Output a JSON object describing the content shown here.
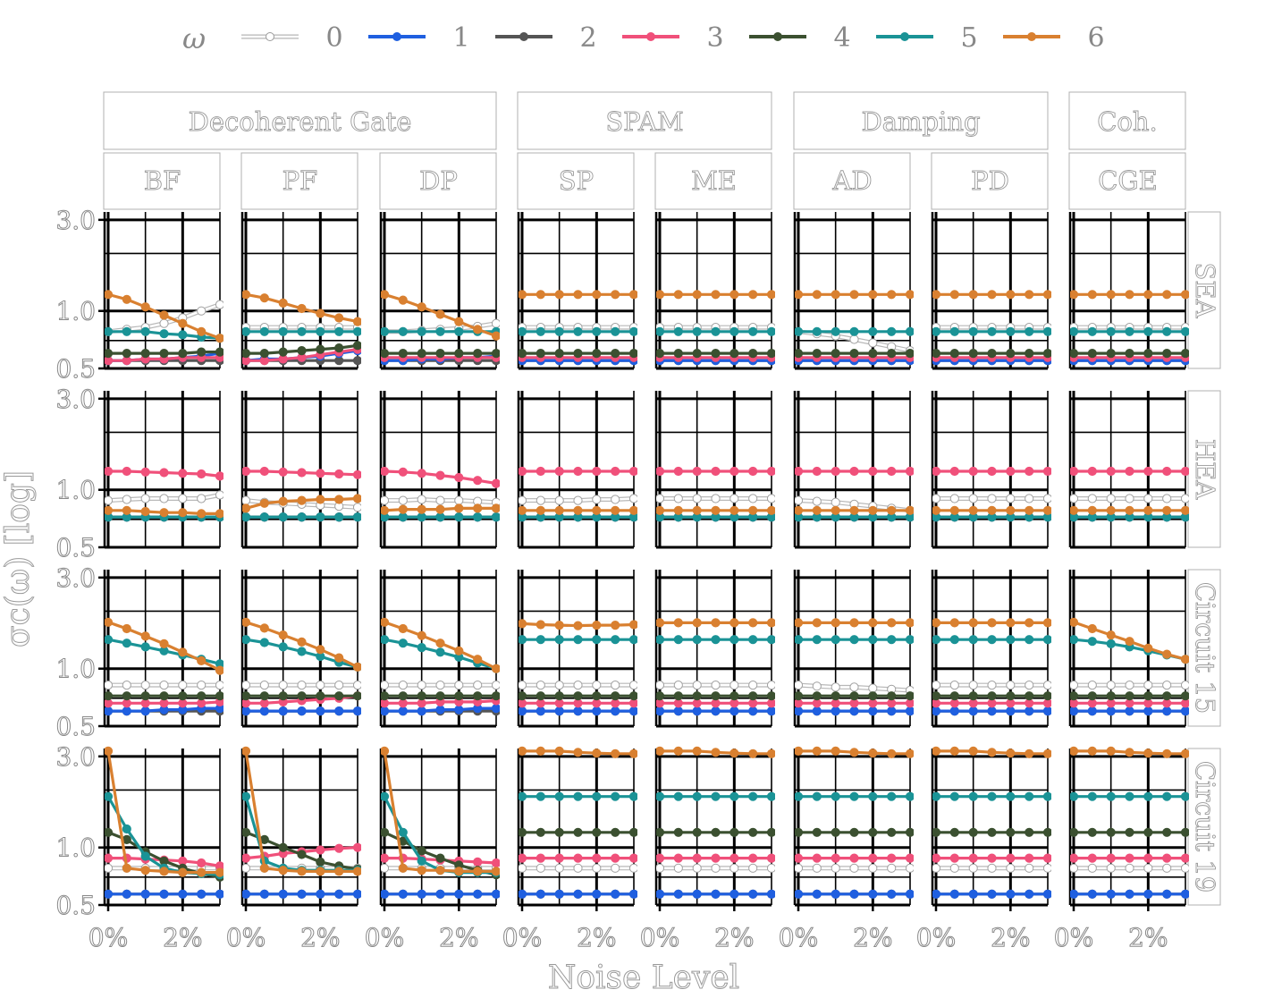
{
  "chart_data": {
    "type": "line",
    "legend": {
      "title": "ω",
      "placement": "top",
      "entries": [
        {
          "label": "0",
          "color": "#ffffff"
        },
        {
          "label": "1",
          "color": "#1f5fe0"
        },
        {
          "label": "2",
          "color": "#555555"
        },
        {
          "label": "3",
          "color": "#f0507a"
        },
        {
          "label": "4",
          "color": "#3b5030"
        },
        {
          "label": "5",
          "color": "#1a9396"
        },
        {
          "label": "6",
          "color": "#d98030"
        }
      ]
    },
    "xlabel": "Noise Level",
    "ylabel": "σc(ω) [log]",
    "yscale": "log",
    "ylim": [
      0.5,
      3.3
    ],
    "yticks": [
      0.5,
      1.0,
      3.0
    ],
    "ytick_labels": [
      "0.5",
      "1.0",
      "3.0"
    ],
    "xlim": [
      0,
      3
    ],
    "xticks": [
      0,
      2
    ],
    "xtick_labels": [
      "0%",
      "2%"
    ],
    "x": [
      0,
      0.5,
      1,
      1.5,
      2,
      2.5,
      3
    ],
    "grid": true,
    "groups": [
      {
        "label": "Decoherent Gate",
        "columns": [
          "BF",
          "PF",
          "DP"
        ]
      },
      {
        "label": "SPAM",
        "columns": [
          "SP",
          "ME"
        ]
      },
      {
        "label": "Damping",
        "columns": [
          "AD",
          "PD"
        ]
      },
      {
        "label": "Coh.",
        "columns": [
          "CGE"
        ]
      }
    ],
    "columns": [
      "BF",
      "PF",
      "DP",
      "SP",
      "ME",
      "AD",
      "PD",
      "CGE"
    ],
    "rows": [
      "SEA",
      "HEA",
      "Circuit 15",
      "Circuit 19"
    ],
    "base": [
      [
        0.82,
        0.55,
        0.55,
        0.57,
        0.6,
        0.78,
        1.22
      ],
      [
        0.9,
        0.72,
        0.72,
        1.25,
        0.72,
        0.72,
        0.78
      ],
      [
        0.82,
        0.6,
        0.6,
        0.66,
        0.72,
        1.42,
        1.75
      ],
      [
        0.78,
        0.57,
        0.57,
        0.88,
        1.2,
        1.85,
        3.2
      ]
    ],
    "panels": {
      "SEA": {
        "BF": {
          "0": [
            0.78,
            0.8,
            0.82,
            0.86,
            0.92,
            1.0,
            1.08
          ],
          "1": [
            0.55,
            0.55,
            0.56,
            0.56,
            0.57,
            0.58,
            0.6
          ],
          "3": [
            0.55,
            0.55,
            0.56,
            0.56,
            0.57,
            0.57,
            0.57
          ],
          "4": [
            0.6,
            0.6,
            0.6,
            0.6,
            0.6,
            0.61,
            0.61
          ],
          "5": [
            0.78,
            0.78,
            0.78,
            0.76,
            0.75,
            0.73,
            0.72
          ],
          "6": [
            1.22,
            1.15,
            1.05,
            0.95,
            0.86,
            0.78,
            0.72
          ]
        },
        "PF": {
          "1": [
            0.55,
            0.56,
            0.56,
            0.57,
            0.58,
            0.6,
            0.62
          ],
          "3": [
            0.55,
            0.55,
            0.56,
            0.57,
            0.59,
            0.61,
            0.63
          ],
          "4": [
            0.6,
            0.6,
            0.61,
            0.62,
            0.63,
            0.64,
            0.66
          ],
          "6": [
            1.22,
            1.17,
            1.1,
            1.03,
            0.97,
            0.92,
            0.88
          ]
        },
        "DP": {
          "0": [
            0.78,
            0.78,
            0.79,
            0.8,
            0.81,
            0.83,
            0.86
          ],
          "1": [
            0.55,
            0.55,
            0.56,
            0.56,
            0.57,
            0.57,
            0.58
          ],
          "6": [
            1.22,
            1.14,
            1.05,
            0.96,
            0.88,
            0.8,
            0.74
          ]
        },
        "AD": {
          "0": [
            0.78,
            0.76,
            0.74,
            0.71,
            0.68,
            0.65,
            0.62
          ]
        }
      },
      "HEA": {
        "BF": {
          "0": [
            0.88,
            0.89,
            0.9,
            0.9,
            0.9,
            0.9,
            0.94
          ],
          "3": [
            1.25,
            1.25,
            1.24,
            1.23,
            1.22,
            1.21,
            1.18
          ],
          "6": [
            0.78,
            0.78,
            0.77,
            0.76,
            0.76,
            0.75,
            0.75
          ]
        },
        "PF": {
          "0": [
            0.88,
            0.86,
            0.85,
            0.84,
            0.83,
            0.82,
            0.81
          ],
          "3": [
            1.25,
            1.25,
            1.24,
            1.23,
            1.22,
            1.21,
            1.2
          ],
          "6": [
            0.8,
            0.85,
            0.87,
            0.88,
            0.89,
            0.89,
            0.9
          ]
        },
        "DP": {
          "0": [
            0.88,
            0.88,
            0.89,
            0.88,
            0.88,
            0.87,
            0.86
          ],
          "3": [
            1.25,
            1.24,
            1.22,
            1.19,
            1.16,
            1.12,
            1.08
          ],
          "6": [
            0.78,
            0.79,
            0.79,
            0.79,
            0.8,
            0.8,
            0.8
          ]
        },
        "SP": {
          "0": [
            0.88,
            0.88,
            0.88,
            0.88,
            0.89,
            0.89,
            0.9
          ]
        },
        "AD": {
          "0": [
            0.88,
            0.87,
            0.86,
            0.84,
            0.82,
            0.8,
            0.78
          ]
        }
      },
      "Circuit 15": {
        "BF": {
          "0": [
            0.82,
            0.82,
            0.82,
            0.82,
            0.82,
            0.82,
            0.82
          ],
          "1": [
            0.6,
            0.6,
            0.6,
            0.61,
            0.61,
            0.62,
            0.62
          ],
          "3": [
            0.66,
            0.66,
            0.66,
            0.66,
            0.66,
            0.66,
            0.67
          ],
          "4": [
            0.72,
            0.72,
            0.72,
            0.72,
            0.72,
            0.72,
            0.72
          ],
          "5": [
            1.42,
            1.36,
            1.3,
            1.24,
            1.18,
            1.12,
            1.06
          ],
          "6": [
            1.75,
            1.62,
            1.48,
            1.35,
            1.22,
            1.1,
            0.98
          ]
        },
        "PF": {
          "0": [
            0.82,
            0.82,
            0.82,
            0.82,
            0.82,
            0.82,
            0.82
          ],
          "1": [
            0.6,
            0.6,
            0.6,
            0.6,
            0.6,
            0.6,
            0.6
          ],
          "3": [
            0.66,
            0.66,
            0.67,
            0.68,
            0.69,
            0.7,
            0.72
          ],
          "4": [
            0.72,
            0.72,
            0.72,
            0.72,
            0.72,
            0.72,
            0.72
          ],
          "5": [
            1.42,
            1.37,
            1.3,
            1.23,
            1.16,
            1.08,
            1.02
          ],
          "6": [
            1.75,
            1.63,
            1.5,
            1.38,
            1.26,
            1.14,
            1.02
          ]
        },
        "DP": {
          "0": [
            0.82,
            0.82,
            0.82,
            0.82,
            0.82,
            0.82,
            0.82
          ],
          "1": [
            0.6,
            0.6,
            0.6,
            0.61,
            0.61,
            0.62,
            0.62
          ],
          "3": [
            0.66,
            0.66,
            0.66,
            0.67,
            0.67,
            0.67,
            0.68
          ],
          "5": [
            1.42,
            1.36,
            1.29,
            1.22,
            1.15,
            1.07,
            1.0
          ],
          "6": [
            1.75,
            1.62,
            1.49,
            1.36,
            1.24,
            1.12,
            1.0
          ]
        },
        "SP": {
          "5": [
            1.42,
            1.42,
            1.42,
            1.42,
            1.42,
            1.42,
            1.42
          ],
          "6": [
            1.72,
            1.7,
            1.69,
            1.68,
            1.69,
            1.69,
            1.7
          ]
        },
        "ME": {
          "5": [
            1.42,
            1.42,
            1.42,
            1.42,
            1.42,
            1.42,
            1.42
          ],
          "6": [
            1.74,
            1.74,
            1.74,
            1.74,
            1.74,
            1.74,
            1.74
          ]
        },
        "AD": {
          "0": [
            0.82,
            0.81,
            0.8,
            0.8,
            0.79,
            0.78,
            0.77
          ],
          "6": [
            1.74,
            1.74,
            1.74,
            1.74,
            1.74,
            1.74,
            1.74
          ]
        },
        "PD": {
          "6": [
            1.74,
            1.74,
            1.74,
            1.74,
            1.74,
            1.74,
            1.74
          ]
        },
        "CGE": {
          "5": [
            1.42,
            1.39,
            1.35,
            1.3,
            1.24,
            1.18,
            1.12
          ],
          "6": [
            1.75,
            1.62,
            1.5,
            1.39,
            1.28,
            1.19,
            1.12
          ]
        }
      },
      "Circuit 19": {
        "BF": {
          "3": [
            0.88,
            0.88,
            0.87,
            0.86,
            0.85,
            0.83,
            0.8
          ],
          "4": [
            1.2,
            1.1,
            0.95,
            0.85,
            0.78,
            0.73,
            0.7
          ],
          "5": [
            1.85,
            1.25,
            0.9,
            0.78,
            0.74,
            0.73,
            0.72
          ],
          "6": [
            3.2,
            0.78,
            0.76,
            0.75,
            0.74,
            0.74,
            0.74
          ]
        },
        "PF": {
          "3": [
            0.88,
            0.9,
            0.93,
            0.95,
            0.97,
            0.99,
            1.0
          ],
          "4": [
            1.2,
            1.1,
            1.0,
            0.92,
            0.84,
            0.8,
            0.77
          ],
          "5": [
            1.85,
            0.85,
            0.78,
            0.76,
            0.76,
            0.76,
            0.76
          ],
          "6": [
            3.2,
            0.78,
            0.76,
            0.75,
            0.75,
            0.75,
            0.75
          ]
        },
        "DP": {
          "3": [
            0.88,
            0.88,
            0.87,
            0.86,
            0.85,
            0.84,
            0.83
          ],
          "4": [
            1.2,
            1.08,
            0.96,
            0.88,
            0.81,
            0.76,
            0.72
          ],
          "5": [
            1.85,
            1.2,
            0.85,
            0.76,
            0.74,
            0.74,
            0.74
          ],
          "6": [
            3.2,
            0.78,
            0.76,
            0.76,
            0.75,
            0.75,
            0.75
          ]
        },
        "SP": {
          "6": [
            3.2,
            3.2,
            3.2,
            3.15,
            3.12,
            3.1,
            3.1
          ]
        },
        "ME": {
          "6": [
            3.2,
            3.2,
            3.2,
            3.15,
            3.12,
            3.1,
            3.1
          ]
        },
        "AD": {
          "6": [
            3.2,
            3.2,
            3.2,
            3.15,
            3.12,
            3.1,
            3.1
          ]
        },
        "PD": {
          "6": [
            3.2,
            3.2,
            3.2,
            3.15,
            3.12,
            3.1,
            3.1
          ]
        },
        "CGE": {
          "6": [
            3.2,
            3.2,
            3.2,
            3.15,
            3.12,
            3.1,
            3.1
          ]
        }
      }
    }
  }
}
